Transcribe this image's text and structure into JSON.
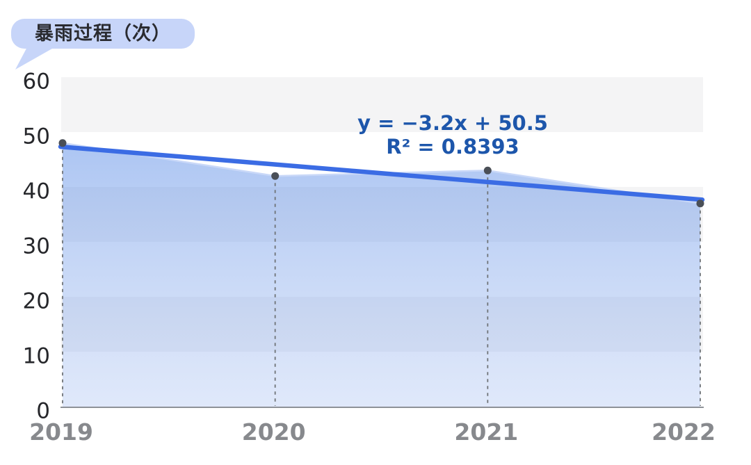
{
  "title_bubble": {
    "label": "暴雨过程（次）"
  },
  "trendline": {
    "equation": "y = −3.2x + 50.5",
    "r_squared": "R² = 0.8393",
    "slope": -3.2,
    "intercept": 50.5
  },
  "chart_data": {
    "type": "area",
    "title": "暴雨过程（次）",
    "categories": [
      "2019",
      "2020",
      "2021",
      "2022"
    ],
    "values": [
      48,
      42,
      43,
      37
    ],
    "xlabel": "",
    "ylabel": "暴雨过程（次）",
    "ylim": [
      0,
      60
    ],
    "yticks": [
      0,
      10,
      20,
      30,
      40,
      50,
      60
    ],
    "grid": "alternating horizontal gray bands (60-50, 40-30, 20-10)",
    "legend": "none",
    "annotations": [
      "y = −3.2x + 50.5",
      "R² = 0.8393"
    ],
    "trendline": {
      "slope": -3.2,
      "intercept": 50.5,
      "r_squared": 0.8393
    }
  },
  "colors": {
    "bubble_bg": "#c7d5f9",
    "bubble_text": "#2a2b30",
    "band_gray": "#f4f4f5",
    "fill_top": "rgba(90,140,230,0.50)",
    "fill_bottom": "rgba(130,165,235,0.25)",
    "area_edge": "#c9d8f8",
    "trend_blue": "#3b6ce4",
    "equation_blue": "#1d56ab",
    "dot_gray": "#4a4f57",
    "dash_gray": "#6f7377",
    "axis_gray": "#8e9298",
    "y_label_dark": "#26272b",
    "x_label_gray": "#87898d"
  }
}
